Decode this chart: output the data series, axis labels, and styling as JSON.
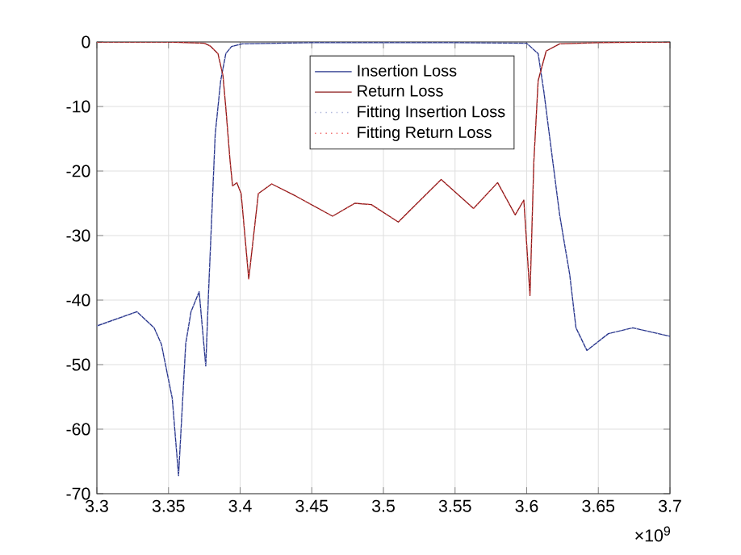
{
  "chart_data": {
    "type": "line",
    "x": [
      3.3,
      3.328,
      3.34,
      3.345,
      3.3526,
      3.357,
      3.362,
      3.3657,
      3.3714,
      3.376,
      3.378,
      3.3826,
      3.3864,
      3.39,
      3.394,
      3.4014,
      3.45,
      3.5,
      3.55,
      3.6,
      3.608,
      3.612,
      3.6163,
      3.623,
      3.63,
      3.6344,
      3.642,
      3.657,
      3.674,
      3.7
    ],
    "series": [
      {
        "name": "Insertion Loss",
        "color": "#27348b",
        "line_style": "solid",
        "values": [
          -44,
          -41.8,
          -44.3,
          -46.8,
          -55.2,
          -67.2,
          -46.8,
          -41.8,
          -38.7,
          -50.2,
          -38.5,
          -14.3,
          -6,
          -1.8,
          -0.7,
          -0.3,
          -0.1,
          -0.1,
          -0.1,
          -0.2,
          -1.8,
          -7.7,
          -15.2,
          -26.8,
          -36,
          -44.3,
          -47.8,
          -45.2,
          -44.3,
          -45.6
        ]
      },
      {
        "name": "Return Loss",
        "color": "#8b1a1a",
        "line_style": "solid",
        "x": [
          3.3,
          3.35,
          3.375,
          3.379,
          3.3845,
          3.388,
          3.39,
          3.393,
          3.3947,
          3.3977,
          3.4007,
          3.406,
          3.4127,
          3.422,
          3.439,
          3.4645,
          3.48,
          3.4916,
          3.5104,
          3.5403,
          3.5629,
          3.5797,
          3.592,
          3.598,
          3.6023,
          3.605,
          3.608,
          3.6136,
          3.623,
          3.65,
          3.7
        ],
        "values": [
          0,
          0,
          -0.2,
          -0.6,
          -1.8,
          -5.2,
          -10.2,
          -18.5,
          -22.3,
          -21.8,
          -23.5,
          -36.7,
          -23.5,
          -22,
          -23.9,
          -27,
          -25,
          -25.2,
          -27.9,
          -21.3,
          -25.8,
          -21.8,
          -26.8,
          -24.5,
          -39.3,
          -18.5,
          -6,
          -1.4,
          -0.3,
          -0.1,
          0
        ]
      },
      {
        "name": "Fitting Insertion Loss",
        "color": "#a8b0d8",
        "line_style": "dotted",
        "values": [
          -44,
          -41.8,
          -44.3,
          -46.8,
          -55.2,
          -67.2,
          -46.8,
          -41.8,
          -38.7,
          -50.2,
          -38.5,
          -14.3,
          -6,
          -1.8,
          -0.7,
          -0.3,
          -0.1,
          -0.1,
          -0.1,
          -0.2,
          -1.8,
          -7.7,
          -15.2,
          -26.8,
          -36,
          -44.3,
          -47.8,
          -45.2,
          -44.3,
          -45.6
        ]
      },
      {
        "name": "Fitting Return Loss",
        "color": "#f06060",
        "line_style": "dotted",
        "x": [
          3.3,
          3.35,
          3.375,
          3.379,
          3.3845,
          3.388,
          3.39,
          3.393,
          3.3947,
          3.3977,
          3.4007,
          3.406,
          3.4127,
          3.422,
          3.439,
          3.4645,
          3.48,
          3.4916,
          3.5104,
          3.5403,
          3.5629,
          3.5797,
          3.592,
          3.598,
          3.6023,
          3.605,
          3.608,
          3.6136,
          3.623,
          3.65,
          3.7
        ],
        "values": [
          0,
          0,
          -0.2,
          -0.6,
          -1.8,
          -5.2,
          -10.2,
          -18.5,
          -22.3,
          -21.8,
          -23.5,
          -36.7,
          -23.5,
          -22,
          -23.9,
          -27,
          -25,
          -25.2,
          -27.9,
          -21.3,
          -25.8,
          -21.8,
          -26.8,
          -24.5,
          -39.3,
          -18.5,
          -6,
          -1.4,
          -0.3,
          -0.1,
          0
        ]
      }
    ],
    "xlim": [
      3.3,
      3.7
    ],
    "xticks": [
      3.3,
      3.35,
      3.4,
      3.45,
      3.5,
      3.55,
      3.6,
      3.65,
      3.7
    ],
    "ylim": [
      -70,
      0
    ],
    "yticks": [
      -70,
      -60,
      -50,
      -40,
      -30,
      -20,
      -10,
      0
    ],
    "grid": true,
    "legend": "top",
    "annotations": [
      "×10$^{9}$"
    ]
  }
}
